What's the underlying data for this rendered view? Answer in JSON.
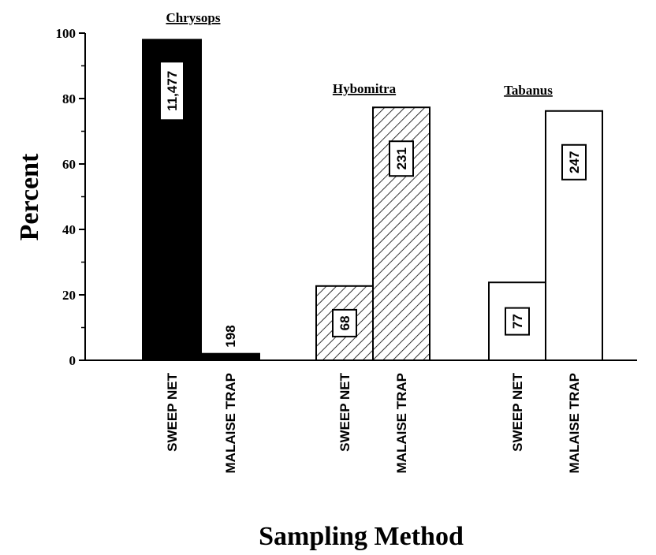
{
  "chart_data": {
    "type": "bar",
    "title": "",
    "xlabel": "Sampling Method",
    "ylabel": "Percent",
    "ylim": [
      0,
      100
    ],
    "yticks": [
      0,
      20,
      40,
      60,
      80,
      100
    ],
    "groups": [
      {
        "name": "Chrysops",
        "fill": "solid",
        "bars": [
          {
            "category": "SWEEP NET",
            "value": 98,
            "count": "11,477"
          },
          {
            "category": "MALAISE TRAP",
            "value": 2,
            "count": "198"
          }
        ]
      },
      {
        "name": "Hybomitra",
        "fill": "hatched",
        "bars": [
          {
            "category": "SWEEP NET",
            "value": 22.7,
            "count": "68"
          },
          {
            "category": "MALAISE TRAP",
            "value": 77.3,
            "count": "231"
          }
        ]
      },
      {
        "name": "Tabanus",
        "fill": "hollow",
        "bars": [
          {
            "category": "SWEEP NET",
            "value": 23.8,
            "count": "77"
          },
          {
            "category": "MALAISE TRAP",
            "value": 76.2,
            "count": "247"
          }
        ]
      }
    ],
    "grid": false,
    "legend": "none",
    "colors": {
      "ink": "#000000",
      "paper": "#ffffff"
    }
  }
}
